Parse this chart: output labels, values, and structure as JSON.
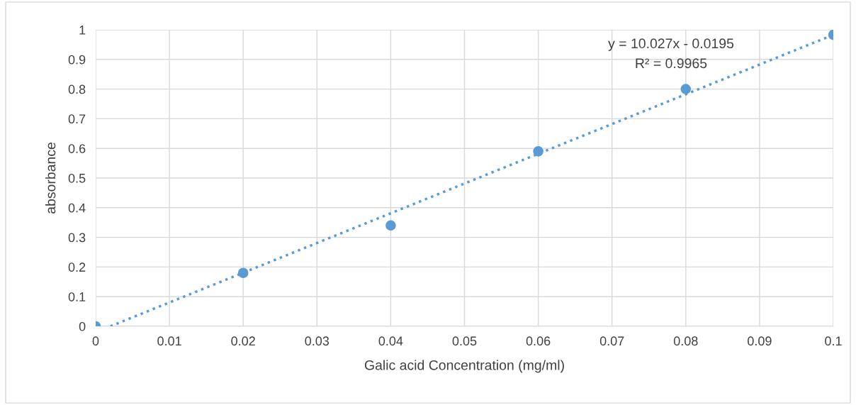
{
  "chart_data": {
    "type": "scatter",
    "xlabel": "Galic acid Concentration (mg/ml)",
    "ylabel": "absorbance",
    "x": [
      0,
      0.02,
      0.04,
      0.06,
      0.08,
      0.1
    ],
    "series": [
      {
        "color": "#5b9bd5",
        "marker": "circle",
        "values": [
          0,
          0.18,
          0.34,
          0.59,
          0.8,
          0.983
        ]
      },
      {
        "type": "line",
        "color": "#5b9bd5",
        "line_style": "dotted",
        "marker": "none",
        "x": [
          0.002,
          0.1
        ],
        "values": [
          0,
          0.983
        ]
      }
    ],
    "xlim": [
      0,
      0.1
    ],
    "ylim": [
      0,
      1
    ],
    "xticks": [
      0,
      0.01,
      0.02,
      0.03,
      0.04,
      0.05,
      0.06,
      0.07,
      0.08,
      0.09,
      0.1
    ],
    "yticks": [
      0,
      0.1,
      0.2,
      0.3,
      0.4,
      0.5,
      0.6,
      0.7,
      0.8,
      0.9,
      1
    ],
    "grid": true,
    "annotations": [
      "y = 10.027x - 0.0195",
      "R² = 0.9965"
    ]
  }
}
